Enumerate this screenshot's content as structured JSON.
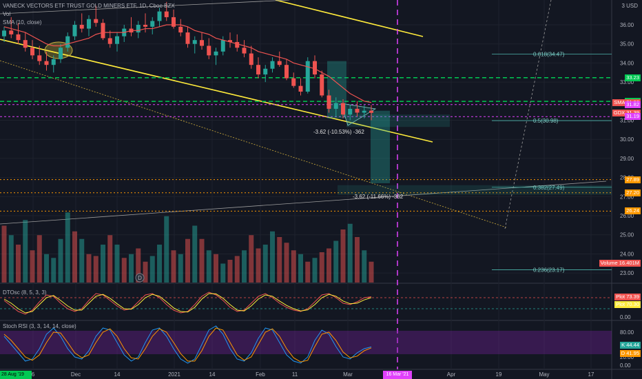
{
  "header": {
    "symbol_title": "VANECK VECTORS ETF TRUST GOLD MINERS ETF, 1D, Cboe BZX",
    "vol_label": "Vol",
    "sma_label": "SMA (10, close)",
    "currency": "3 USD"
  },
  "price_axis_ticks": [
    "36.00",
    "35.00",
    "34.00",
    "33.00",
    "32.00",
    "31.00",
    "30.00",
    "29.00",
    "28.00",
    "27.00",
    "26.00",
    "25.00",
    "24.00",
    "23.00"
  ],
  "price_tags": [
    {
      "value": "33.23",
      "color": "#00c853"
    },
    {
      "value": "31.99",
      "color": "#00c853"
    },
    {
      "value": "31.93",
      "color": "#ef5350",
      "label": "SMA"
    },
    {
      "value": "31.82",
      "color": "#e040fb"
    },
    {
      "value": "31.39",
      "color": "#ef5350",
      "label": "GDX"
    },
    {
      "value": "31.19",
      "color": "#e040fb"
    },
    {
      "value": "27.89",
      "color": "#ff9800"
    },
    {
      "value": "27.20",
      "color": "#ff9800"
    },
    {
      "value": "26.24",
      "color": "#ff9800"
    }
  ],
  "volume_tag": {
    "label": "Volume",
    "value": "16.401M"
  },
  "x_axis": {
    "labels": [
      "6",
      "Dec",
      "14",
      "2021",
      "14",
      "Feb",
      "11",
      "Mar",
      "Apr",
      "19",
      "May",
      "17"
    ],
    "left_date_tag": "28 Aug '19",
    "cursor_date_tag": "16 Mar '21"
  },
  "fib_labels": [
    "0.618(34.47)",
    "0.5(30.98)",
    "0.382(27.49)",
    "0.236(23.17)"
  ],
  "measure_labels": [
    "-3.62 (-10.53%) -362",
    "-3.62 (-11.66%) -362"
  ],
  "dtosc": {
    "title": "DTOsc (8, 5, 3, 3)",
    "ticks": [
      "50.00",
      "0.00"
    ],
    "tags": [
      {
        "label": "Plot",
        "value": "73.39",
        "color": "#ef5350"
      },
      {
        "label": "Plot",
        "value": "70.30",
        "color": "#ffeb3b"
      }
    ]
  },
  "stoch_rsi": {
    "title": "Stoch RSI (3, 3, 14, 14, close)",
    "ticks": [
      "80.00",
      "20.00",
      "0.00"
    ],
    "tags": [
      {
        "label": "K",
        "value": "44.44",
        "color": "#26a69a"
      },
      {
        "label": "D",
        "value": "41.95",
        "color": "#ff9800"
      }
    ]
  },
  "earnings_marker": "D",
  "chart_data": {
    "type": "candlestick",
    "title": "VANECK VECTORS ETF TRUST GOLD MINERS ETF, 1D, Cboe BZX",
    "ylim": [
      22.5,
      37.3
    ],
    "candles": [
      [
        35.4,
        35.9,
        35.1,
        35.7
      ],
      [
        35.7,
        36.4,
        35.3,
        35.5
      ],
      [
        35.5,
        36.1,
        35.0,
        35.2
      ],
      [
        35.2,
        35.6,
        34.6,
        34.8
      ],
      [
        34.8,
        35.2,
        34.2,
        34.4
      ],
      [
        34.4,
        34.9,
        33.9,
        34.1
      ],
      [
        34.1,
        34.6,
        33.6,
        33.9
      ],
      [
        33.9,
        34.4,
        33.5,
        34.2
      ],
      [
        34.2,
        35.0,
        34.0,
        34.8
      ],
      [
        34.8,
        35.6,
        34.6,
        35.4
      ],
      [
        35.4,
        36.2,
        35.2,
        36.0
      ],
      [
        36.0,
        36.6,
        35.6,
        35.8
      ],
      [
        35.8,
        36.5,
        35.4,
        36.3
      ],
      [
        36.3,
        37.0,
        35.9,
        36.1
      ],
      [
        36.1,
        36.3,
        35.2,
        35.3
      ],
      [
        35.3,
        35.7,
        34.8,
        35.0
      ],
      [
        35.0,
        35.6,
        34.6,
        35.4
      ],
      [
        35.4,
        36.0,
        35.1,
        35.8
      ],
      [
        35.8,
        36.4,
        35.4,
        35.6
      ],
      [
        35.6,
        36.2,
        35.3,
        36.0
      ],
      [
        36.0,
        36.6,
        35.6,
        35.9
      ],
      [
        35.9,
        36.4,
        35.5,
        36.2
      ],
      [
        36.2,
        36.9,
        35.9,
        36.7
      ],
      [
        36.7,
        37.2,
        36.2,
        36.4
      ],
      [
        36.4,
        36.8,
        35.8,
        35.9
      ],
      [
        35.9,
        36.3,
        35.4,
        35.6
      ],
      [
        35.6,
        35.9,
        34.8,
        35.0
      ],
      [
        35.0,
        35.4,
        34.5,
        35.2
      ],
      [
        35.2,
        35.6,
        34.7,
        34.9
      ],
      [
        34.9,
        35.3,
        34.2,
        34.4
      ],
      [
        34.4,
        34.8,
        33.9,
        34.6
      ],
      [
        34.6,
        35.4,
        34.4,
        35.2
      ],
      [
        35.2,
        35.6,
        34.8,
        35.1
      ],
      [
        35.1,
        35.5,
        34.6,
        34.8
      ],
      [
        34.8,
        35.2,
        34.3,
        34.5
      ],
      [
        34.5,
        34.9,
        33.7,
        33.9
      ],
      [
        33.9,
        34.3,
        33.2,
        33.4
      ],
      [
        33.4,
        33.9,
        33.0,
        33.7
      ],
      [
        33.7,
        34.3,
        33.5,
        34.1
      ],
      [
        34.1,
        34.6,
        33.8,
        33.9
      ],
      [
        33.9,
        34.2,
        33.1,
        33.2
      ],
      [
        33.2,
        33.5,
        32.7,
        32.8
      ],
      [
        32.8,
        33.2,
        32.3,
        32.5
      ],
      [
        32.5,
        34.3,
        32.4,
        34.1
      ],
      [
        34.1,
        34.4,
        33.2,
        33.4
      ],
      [
        33.4,
        33.6,
        32.2,
        32.3
      ],
      [
        32.3,
        32.6,
        31.4,
        31.6
      ],
      [
        31.6,
        32.2,
        31.2,
        31.9
      ],
      [
        31.9,
        32.1,
        31.1,
        31.3
      ],
      [
        31.3,
        31.8,
        31.0,
        31.6
      ],
      [
        31.6,
        32.0,
        31.2,
        31.4
      ],
      [
        31.4,
        31.8,
        31.1,
        31.5
      ],
      [
        31.5,
        31.8,
        31.0,
        31.39
      ]
    ],
    "sma": [
      35.9,
      35.8,
      35.7,
      35.6,
      35.4,
      35.2,
      35.0,
      34.9,
      34.9,
      35.0,
      35.1,
      35.2,
      35.3,
      35.5,
      35.6,
      35.6,
      35.6,
      35.6,
      35.7,
      35.7,
      35.8,
      35.8,
      35.9,
      36.0,
      36.0,
      36.0,
      35.9,
      35.7,
      35.6,
      35.5,
      35.3,
      35.2,
      35.1,
      35.0,
      34.9,
      34.8,
      34.6,
      34.5,
      34.4,
      34.3,
      34.2,
      34.0,
      33.9,
      33.8,
      33.7,
      33.5,
      33.3,
      33.0,
      32.7,
      32.4,
      32.2,
      32.0,
      31.93
    ],
    "volume": [
      [
        25.5,
        0
      ],
      [
        25.0,
        1
      ],
      [
        24.5,
        0
      ],
      [
        25.8,
        1
      ],
      [
        24.2,
        0
      ],
      [
        25.0,
        0
      ],
      [
        24.0,
        1
      ],
      [
        23.8,
        1
      ],
      [
        24.8,
        1
      ],
      [
        26.2,
        1
      ],
      [
        25.2,
        0
      ],
      [
        24.8,
        1
      ],
      [
        24.0,
        0
      ],
      [
        23.9,
        0
      ],
      [
        24.5,
        1
      ],
      [
        25.0,
        0
      ],
      [
        24.5,
        1
      ],
      [
        23.8,
        0
      ],
      [
        24.0,
        1
      ],
      [
        24.3,
        0
      ],
      [
        23.6,
        0
      ],
      [
        23.9,
        1
      ],
      [
        24.5,
        1
      ],
      [
        26.0,
        1
      ],
      [
        24.2,
        0
      ],
      [
        24.0,
        1
      ],
      [
        24.8,
        0
      ],
      [
        25.5,
        1
      ],
      [
        24.8,
        0
      ],
      [
        24.2,
        1
      ],
      [
        24.0,
        0
      ],
      [
        23.5,
        1
      ],
      [
        23.7,
        0
      ],
      [
        23.9,
        0
      ],
      [
        24.2,
        1
      ],
      [
        25.0,
        0
      ],
      [
        24.3,
        0
      ],
      [
        24.5,
        1
      ],
      [
        25.2,
        1
      ],
      [
        24.9,
        0
      ],
      [
        24.6,
        0
      ],
      [
        24.2,
        0
      ],
      [
        24.0,
        1
      ],
      [
        23.6,
        0
      ],
      [
        23.8,
        1
      ],
      [
        24.1,
        0
      ],
      [
        24.3,
        0
      ],
      [
        24.7,
        1
      ],
      [
        25.3,
        0
      ],
      [
        25.6,
        1
      ],
      [
        24.9,
        0
      ],
      [
        24.2,
        1
      ],
      [
        23.6,
        0
      ]
    ],
    "dtosc_k": [
      60,
      40,
      20,
      10,
      25,
      55,
      80,
      75,
      50,
      30,
      20,
      30,
      60,
      85,
      80,
      60,
      40,
      25,
      30,
      55,
      80,
      85,
      70,
      45,
      25,
      15,
      20,
      45,
      75,
      90,
      80,
      60,
      35,
      20,
      25,
      50,
      75,
      85,
      70,
      50,
      35,
      25,
      20,
      30,
      55,
      80,
      85,
      70,
      50,
      45,
      55,
      70,
      73.39
    ],
    "dtosc_d": [
      65,
      50,
      30,
      15,
      20,
      45,
      70,
      78,
      60,
      40,
      25,
      25,
      50,
      75,
      82,
      68,
      48,
      30,
      28,
      45,
      70,
      82,
      75,
      55,
      33,
      20,
      18,
      35,
      65,
      85,
      84,
      68,
      45,
      25,
      22,
      40,
      65,
      80,
      75,
      58,
      42,
      30,
      22,
      26,
      45,
      70,
      82,
      75,
      58,
      48,
      50,
      62,
      70.3
    ],
    "stoch_k": [
      70,
      50,
      30,
      10,
      15,
      40,
      75,
      90,
      70,
      40,
      20,
      15,
      35,
      70,
      90,
      85,
      55,
      25,
      10,
      20,
      55,
      85,
      90,
      70,
      40,
      15,
      5,
      15,
      50,
      85,
      95,
      75,
      40,
      15,
      10,
      30,
      65,
      90,
      85,
      55,
      25,
      10,
      5,
      20,
      60,
      85,
      75,
      45,
      20,
      15,
      30,
      40,
      44.44
    ],
    "stoch_d": [
      75,
      60,
      40,
      20,
      12,
      25,
      55,
      80,
      78,
      55,
      30,
      18,
      25,
      55,
      80,
      88,
      70,
      40,
      18,
      15,
      40,
      70,
      88,
      80,
      55,
      28,
      10,
      10,
      35,
      70,
      90,
      85,
      55,
      25,
      12,
      20,
      50,
      80,
      88,
      70,
      40,
      18,
      8,
      12,
      45,
      75,
      80,
      60,
      32,
      18,
      22,
      35,
      41.95
    ]
  }
}
